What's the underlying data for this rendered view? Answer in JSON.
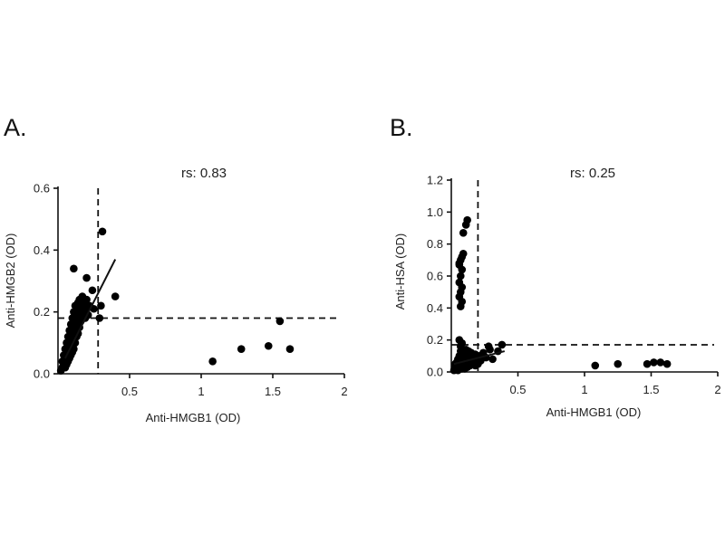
{
  "chart_data": [
    {
      "type": "scatter",
      "panel_label": "A.",
      "annotation": "rs: 0.83",
      "xlabel": "Anti-HMGB1 (OD)",
      "ylabel": "Anti-HMGB2 (OD)",
      "xlim": [
        0,
        2
      ],
      "ylim": [
        0,
        0.6
      ],
      "xticks": [
        "0.5",
        "1",
        "1.5",
        "2"
      ],
      "yticks": [
        "0.0",
        "0.2",
        "0.4",
        "0.6"
      ],
      "cutoff_x": 0.28,
      "cutoff_y": 0.18,
      "fit_line": [
        [
          0.05,
          0.05
        ],
        [
          0.4,
          0.37
        ]
      ],
      "points": [
        [
          0.02,
          0.01
        ],
        [
          0.03,
          0.02
        ],
        [
          0.03,
          0.04
        ],
        [
          0.04,
          0.03
        ],
        [
          0.04,
          0.06
        ],
        [
          0.05,
          0.02
        ],
        [
          0.05,
          0.05
        ],
        [
          0.05,
          0.08
        ],
        [
          0.06,
          0.03
        ],
        [
          0.06,
          0.07
        ],
        [
          0.06,
          0.1
        ],
        [
          0.07,
          0.04
        ],
        [
          0.07,
          0.06
        ],
        [
          0.07,
          0.09
        ],
        [
          0.07,
          0.12
        ],
        [
          0.08,
          0.05
        ],
        [
          0.08,
          0.08
        ],
        [
          0.08,
          0.11
        ],
        [
          0.08,
          0.14
        ],
        [
          0.09,
          0.06
        ],
        [
          0.09,
          0.09
        ],
        [
          0.09,
          0.13
        ],
        [
          0.09,
          0.16
        ],
        [
          0.1,
          0.07
        ],
        [
          0.1,
          0.1
        ],
        [
          0.1,
          0.15
        ],
        [
          0.1,
          0.18
        ],
        [
          0.11,
          0.08
        ],
        [
          0.11,
          0.12
        ],
        [
          0.11,
          0.17
        ],
        [
          0.11,
          0.2
        ],
        [
          0.12,
          0.1
        ],
        [
          0.12,
          0.14
        ],
        [
          0.12,
          0.19
        ],
        [
          0.12,
          0.22
        ],
        [
          0.13,
          0.12
        ],
        [
          0.13,
          0.16
        ],
        [
          0.13,
          0.21
        ],
        [
          0.14,
          0.13
        ],
        [
          0.14,
          0.18
        ],
        [
          0.14,
          0.23
        ],
        [
          0.15,
          0.15
        ],
        [
          0.15,
          0.2
        ],
        [
          0.15,
          0.24
        ],
        [
          0.16,
          0.17
        ],
        [
          0.16,
          0.22
        ],
        [
          0.17,
          0.19
        ],
        [
          0.17,
          0.25
        ],
        [
          0.18,
          0.2
        ],
        [
          0.18,
          0.23
        ],
        [
          0.19,
          0.18
        ],
        [
          0.2,
          0.21
        ],
        [
          0.2,
          0.24
        ],
        [
          0.21,
          0.19
        ],
        [
          0.22,
          0.22
        ],
        [
          0.24,
          0.27
        ],
        [
          0.25,
          0.21
        ],
        [
          0.29,
          0.18
        ],
        [
          0.3,
          0.22
        ],
        [
          0.11,
          0.34
        ],
        [
          0.2,
          0.31
        ],
        [
          0.31,
          0.46
        ],
        [
          0.4,
          0.25
        ],
        [
          1.08,
          0.04
        ],
        [
          1.28,
          0.08
        ],
        [
          1.47,
          0.09
        ],
        [
          1.55,
          0.17
        ],
        [
          1.62,
          0.08
        ]
      ]
    },
    {
      "type": "scatter",
      "panel_label": "B.",
      "annotation": "rs: 0.25",
      "xlabel": "Anti-HMGB1 (OD)",
      "ylabel": "Anti-HSA (OD)",
      "xlim": [
        0,
        2
      ],
      "ylim": [
        0,
        1.2
      ],
      "xticks": [
        "0.5",
        "1",
        "1.5",
        "2"
      ],
      "yticks": [
        "0.0",
        "0.2",
        "0.4",
        "0.6",
        "0.8",
        "1.0",
        "1.2"
      ],
      "cutoff_x": 0.2,
      "cutoff_y": 0.17,
      "fit_line": [
        [
          0.02,
          0.05
        ],
        [
          0.4,
          0.13
        ]
      ],
      "points": [
        [
          0.02,
          0.01
        ],
        [
          0.03,
          0.03
        ],
        [
          0.03,
          0.05
        ],
        [
          0.04,
          0.02
        ],
        [
          0.04,
          0.06
        ],
        [
          0.05,
          0.01
        ],
        [
          0.05,
          0.04
        ],
        [
          0.05,
          0.08
        ],
        [
          0.06,
          0.02
        ],
        [
          0.06,
          0.06
        ],
        [
          0.06,
          0.1
        ],
        [
          0.07,
          0.03
        ],
        [
          0.07,
          0.05
        ],
        [
          0.07,
          0.09
        ],
        [
          0.07,
          0.13
        ],
        [
          0.08,
          0.02
        ],
        [
          0.08,
          0.07
        ],
        [
          0.08,
          0.11
        ],
        [
          0.09,
          0.04
        ],
        [
          0.09,
          0.08
        ],
        [
          0.09,
          0.12
        ],
        [
          0.1,
          0.02
        ],
        [
          0.1,
          0.06
        ],
        [
          0.1,
          0.1
        ],
        [
          0.11,
          0.04
        ],
        [
          0.11,
          0.09
        ],
        [
          0.11,
          0.14
        ],
        [
          0.12,
          0.03
        ],
        [
          0.12,
          0.07
        ],
        [
          0.12,
          0.11
        ],
        [
          0.13,
          0.05
        ],
        [
          0.13,
          0.09
        ],
        [
          0.13,
          0.13
        ],
        [
          0.14,
          0.04
        ],
        [
          0.14,
          0.08
        ],
        [
          0.15,
          0.06
        ],
        [
          0.15,
          0.12
        ],
        [
          0.16,
          0.05
        ],
        [
          0.16,
          0.1
        ],
        [
          0.17,
          0.07
        ],
        [
          0.18,
          0.04
        ],
        [
          0.18,
          0.11
        ],
        [
          0.19,
          0.08
        ],
        [
          0.2,
          0.05
        ],
        [
          0.21,
          0.1
        ],
        [
          0.22,
          0.07
        ],
        [
          0.24,
          0.12
        ],
        [
          0.26,
          0.09
        ],
        [
          0.29,
          0.14
        ],
        [
          0.31,
          0.08
        ],
        [
          0.35,
          0.13
        ],
        [
          0.38,
          0.17
        ],
        [
          0.28,
          0.16
        ],
        [
          0.06,
          0.2
        ],
        [
          0.07,
          0.16
        ],
        [
          0.08,
          0.18
        ],
        [
          0.07,
          0.41
        ],
        [
          0.08,
          0.44
        ],
        [
          0.06,
          0.47
        ],
        [
          0.07,
          0.5
        ],
        [
          0.08,
          0.53
        ],
        [
          0.06,
          0.56
        ],
        [
          0.07,
          0.6
        ],
        [
          0.08,
          0.64
        ],
        [
          0.06,
          0.67
        ],
        [
          0.07,
          0.7
        ],
        [
          0.08,
          0.72
        ],
        [
          0.09,
          0.74
        ],
        [
          0.06,
          0.68
        ],
        [
          0.09,
          0.87
        ],
        [
          0.11,
          0.92
        ],
        [
          0.12,
          0.95
        ],
        [
          1.08,
          0.04
        ],
        [
          1.25,
          0.05
        ],
        [
          1.47,
          0.05
        ],
        [
          1.52,
          0.06
        ],
        [
          1.57,
          0.06
        ],
        [
          1.62,
          0.05
        ]
      ]
    }
  ]
}
